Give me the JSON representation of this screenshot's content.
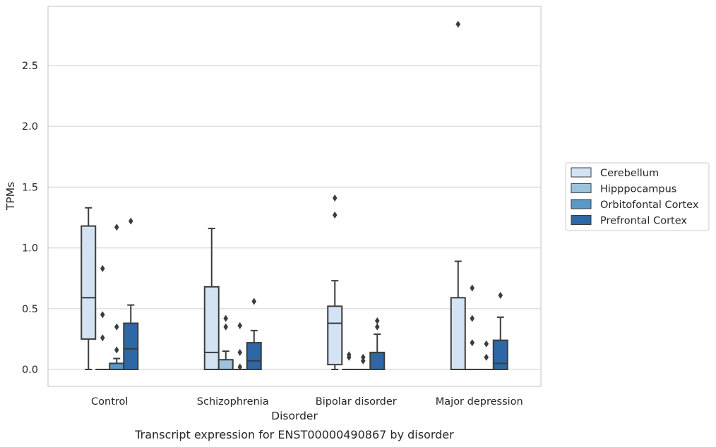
{
  "chart_data": {
    "type": "box",
    "caption": "Transcript expression for ENST00000490867 by disorder",
    "xlabel": "Disorder",
    "ylabel": "TPMs",
    "ylim": [
      -0.14,
      2.96
    ],
    "yticks": [
      "0.0",
      "0.5",
      "1.0",
      "1.5",
      "2.0",
      "2.5"
    ],
    "grid": true,
    "legend_position": "right",
    "categories": [
      "Control",
      "Schizophrenia",
      "Bipolar disorder",
      "Major depression"
    ],
    "series": [
      {
        "name": "Cerebellum",
        "color": "#d4e3f3",
        "boxes": [
          {
            "whislo": 0.0,
            "q1": 0.25,
            "med": 0.59,
            "q3": 1.18,
            "whishi": 1.33,
            "fliers": []
          },
          {
            "whislo": 0.0,
            "q1": 0.0,
            "med": 0.14,
            "q3": 0.68,
            "whishi": 1.16,
            "fliers": []
          },
          {
            "whislo": 0.0,
            "q1": 0.04,
            "med": 0.38,
            "q3": 0.52,
            "whishi": 0.73,
            "fliers": [
              1.27,
              1.41
            ]
          },
          {
            "whislo": 0.0,
            "q1": 0.0,
            "med": 0.0,
            "q3": 0.59,
            "whishi": 0.89,
            "fliers": [
              2.84
            ]
          }
        ]
      },
      {
        "name": "Hipppocampus",
        "color": "#9dc2dd",
        "boxes": [
          {
            "whislo": 0.0,
            "q1": 0.0,
            "med": 0.0,
            "q3": 0.0,
            "whishi": 0.0,
            "fliers": [
              0.26,
              0.45,
              0.83
            ]
          },
          {
            "whislo": 0.0,
            "q1": 0.0,
            "med": 0.0,
            "q3": 0.08,
            "whishi": 0.15,
            "fliers": [
              0.35,
              0.42
            ]
          },
          {
            "whislo": 0.0,
            "q1": 0.0,
            "med": 0.0,
            "q3": 0.0,
            "whishi": 0.0,
            "fliers": [
              0.1,
              0.12
            ]
          },
          {
            "whislo": 0.0,
            "q1": 0.0,
            "med": 0.0,
            "q3": 0.0,
            "whishi": 0.0,
            "fliers": [
              0.22,
              0.42,
              0.67
            ]
          }
        ]
      },
      {
        "name": "Orbitofontal Cortex",
        "color": "#5a98c7",
        "boxes": [
          {
            "whislo": 0.0,
            "q1": 0.0,
            "med": 0.0,
            "q3": 0.05,
            "whishi": 0.09,
            "fliers": [
              0.16,
              0.35,
              1.17
            ]
          },
          {
            "whislo": 0.0,
            "q1": 0.0,
            "med": 0.0,
            "q3": 0.0,
            "whishi": 0.0,
            "fliers": [
              0.02,
              0.14,
              0.36
            ]
          },
          {
            "whislo": 0.0,
            "q1": 0.0,
            "med": 0.0,
            "q3": 0.0,
            "whishi": 0.0,
            "fliers": [
              0.07,
              0.1
            ]
          },
          {
            "whislo": 0.0,
            "q1": 0.0,
            "med": 0.0,
            "q3": 0.0,
            "whishi": 0.0,
            "fliers": [
              0.1,
              0.21
            ]
          }
        ]
      },
      {
        "name": "Prefrontal Cortex",
        "color": "#2d67a6",
        "boxes": [
          {
            "whislo": 0.0,
            "q1": 0.0,
            "med": 0.17,
            "q3": 0.38,
            "whishi": 0.53,
            "fliers": [
              1.22
            ]
          },
          {
            "whislo": 0.0,
            "q1": 0.0,
            "med": 0.07,
            "q3": 0.22,
            "whishi": 0.32,
            "fliers": [
              0.56
            ]
          },
          {
            "whislo": 0.0,
            "q1": 0.0,
            "med": 0.0,
            "q3": 0.14,
            "whishi": 0.29,
            "fliers": [
              0.35,
              0.4
            ]
          },
          {
            "whislo": 0.0,
            "q1": 0.0,
            "med": 0.05,
            "q3": 0.24,
            "whishi": 0.43,
            "fliers": [
              0.61
            ]
          }
        ]
      }
    ]
  }
}
